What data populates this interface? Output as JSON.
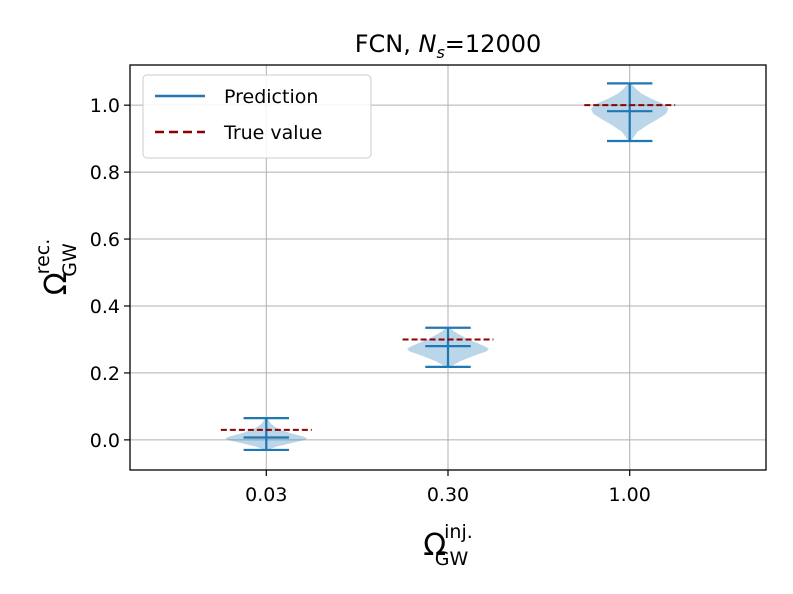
{
  "chart_data": {
    "type": "violin",
    "title": {
      "main": "FCN, ",
      "var": "N",
      "sub": "s",
      "rest": "=12000"
    },
    "xlabel": {
      "main": "Ω",
      "sup": "inj.",
      "sub": "GW"
    },
    "ylabel": {
      "main": "Ω",
      "sup": "rec.",
      "sub": "GW"
    },
    "categories": [
      "0.03",
      "0.30",
      "1.00"
    ],
    "yticks": [
      "0.0",
      "0.2",
      "0.4",
      "0.6",
      "0.8",
      "1.0"
    ],
    "ylim": [
      -0.09,
      1.12
    ],
    "grid": true,
    "legend": {
      "placement": "upper-left",
      "entries": [
        {
          "label": "Prediction",
          "style": "solid",
          "color": "#1f77b4"
        },
        {
          "label": "True value",
          "style": "dashed",
          "color": "#8b0000"
        }
      ]
    },
    "colors": {
      "violin_fill": "#1f77b4",
      "prediction": "#1f77b4",
      "true_value": "#8b0000",
      "grid": "#b0b0b0"
    },
    "violins": [
      {
        "category": "0.03",
        "true_value": 0.03,
        "min": -0.03,
        "median": 0.007,
        "max": 0.065,
        "mode": 0.005,
        "halfwidth_frac": 0.9,
        "profile": [
          [
            -0.03,
            0.05
          ],
          [
            -0.02,
            0.25
          ],
          [
            -0.01,
            0.6
          ],
          [
            0.0,
            0.95
          ],
          [
            0.005,
            1.0
          ],
          [
            0.01,
            0.9
          ],
          [
            0.02,
            0.6
          ],
          [
            0.03,
            0.35
          ],
          [
            0.04,
            0.2
          ],
          [
            0.05,
            0.1
          ],
          [
            0.065,
            0.03
          ]
        ]
      },
      {
        "category": "0.30",
        "true_value": 0.3,
        "min": 0.218,
        "median": 0.28,
        "max": 0.335,
        "mode": 0.27,
        "halfwidth_frac": 0.9,
        "profile": [
          [
            0.218,
            0.05
          ],
          [
            0.235,
            0.3
          ],
          [
            0.25,
            0.6
          ],
          [
            0.265,
            0.95
          ],
          [
            0.272,
            1.0
          ],
          [
            0.28,
            0.9
          ],
          [
            0.29,
            0.7
          ],
          [
            0.3,
            0.5
          ],
          [
            0.31,
            0.35
          ],
          [
            0.32,
            0.2
          ],
          [
            0.335,
            0.04
          ]
        ]
      },
      {
        "category": "1.00",
        "true_value": 1.0,
        "min": 0.893,
        "median": 0.982,
        "max": 1.065,
        "mode": 0.985,
        "halfwidth_frac": 0.85,
        "profile": [
          [
            0.893,
            0.03
          ],
          [
            0.92,
            0.2
          ],
          [
            0.94,
            0.45
          ],
          [
            0.96,
            0.75
          ],
          [
            0.975,
            0.95
          ],
          [
            0.99,
            1.0
          ],
          [
            1.005,
            0.85
          ],
          [
            1.02,
            0.55
          ],
          [
            1.035,
            0.3
          ],
          [
            1.05,
            0.15
          ],
          [
            1.065,
            0.03
          ]
        ]
      }
    ]
  }
}
